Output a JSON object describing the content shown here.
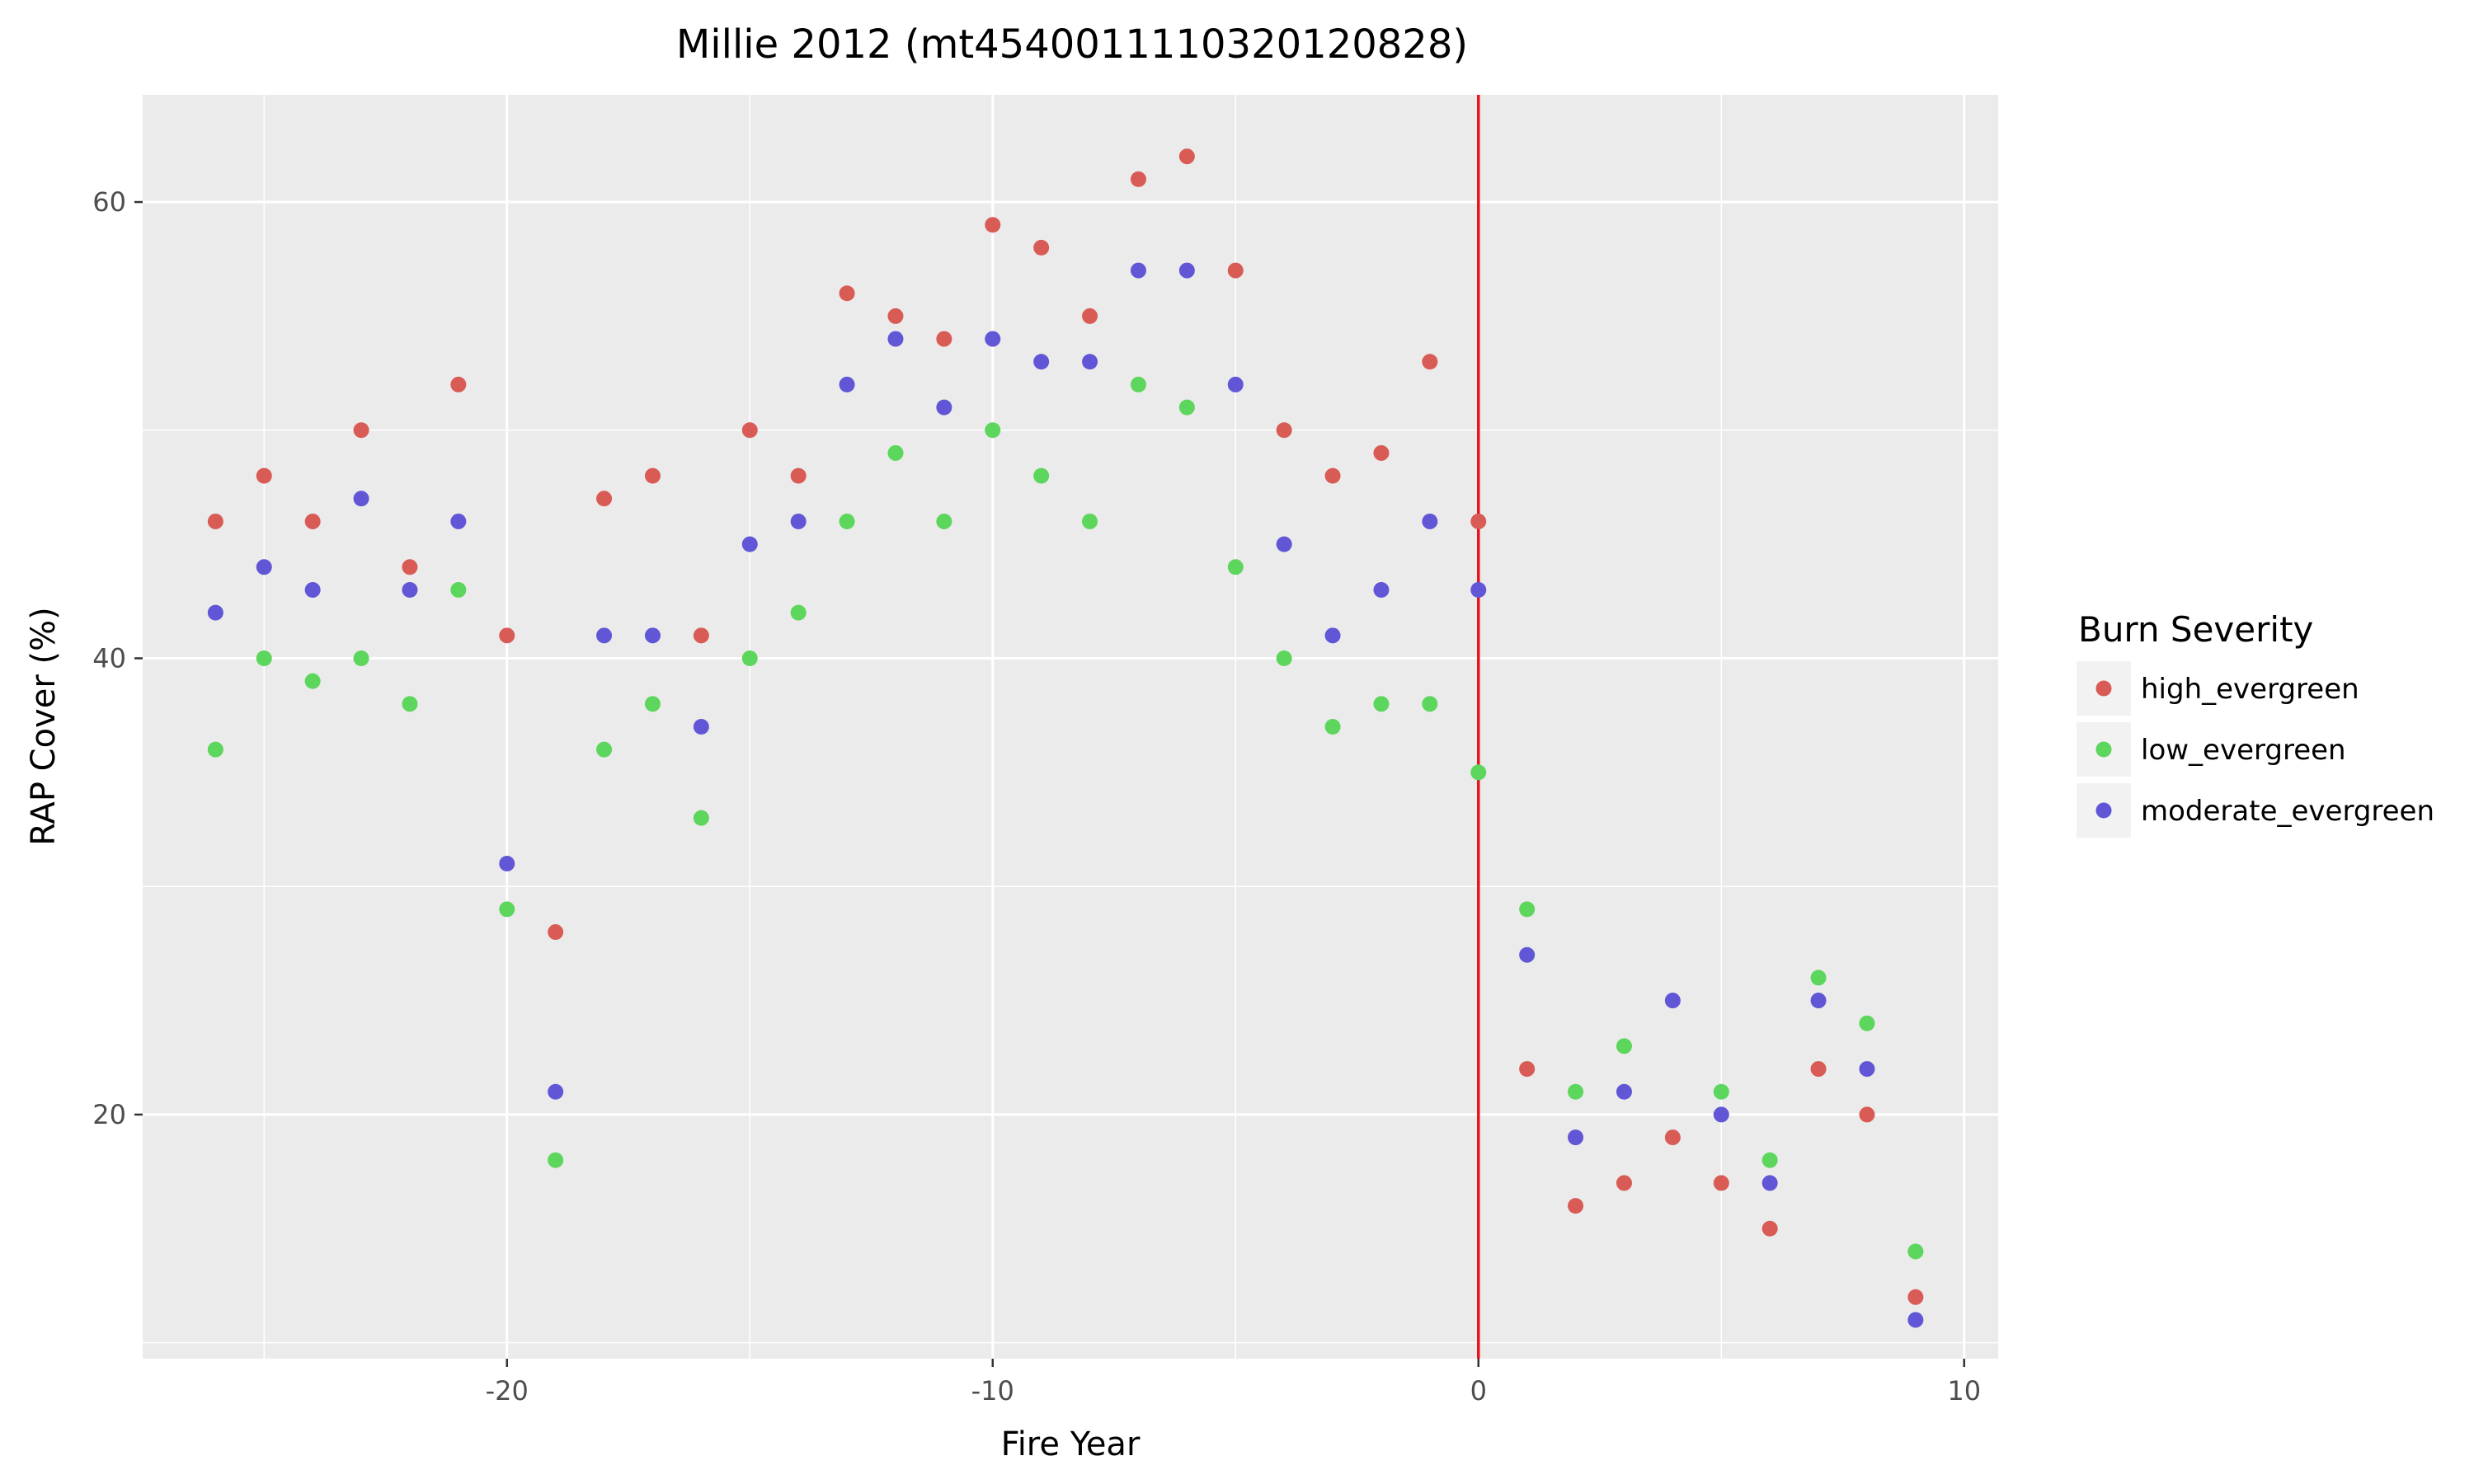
{
  "chart_data": {
    "type": "scatter",
    "title": "Millie 2012 (mt4540011110320120828)",
    "xlabel": "Fire Year",
    "ylabel": "RAP Cover (%)",
    "xlim": [
      -27.5,
      10.7
    ],
    "ylim": [
      9.3,
      64.7
    ],
    "x_ticks": [
      -20,
      -10,
      0,
      10
    ],
    "y_ticks": [
      20,
      40,
      60
    ],
    "grid": true,
    "vline_x": 0,
    "vline_color": "#e8141c",
    "legend": {
      "title": "Burn Severity",
      "position": "right"
    },
    "series": [
      {
        "name": "high_evergreen",
        "color": "#d95b55",
        "points": [
          [
            -26,
            46
          ],
          [
            -25,
            48
          ],
          [
            -24,
            46
          ],
          [
            -23,
            50
          ],
          [
            -22,
            44
          ],
          [
            -21,
            52
          ],
          [
            -20,
            41
          ],
          [
            -19,
            28
          ],
          [
            -18,
            47
          ],
          [
            -17,
            48
          ],
          [
            -16,
            41
          ],
          [
            -15,
            50
          ],
          [
            -14,
            48
          ],
          [
            -13,
            56
          ],
          [
            -12,
            55
          ],
          [
            -11,
            54
          ],
          [
            -10,
            59
          ],
          [
            -9,
            58
          ],
          [
            -8,
            55
          ],
          [
            -7,
            61
          ],
          [
            -6,
            62
          ],
          [
            -5,
            57
          ],
          [
            -4,
            50
          ],
          [
            -3,
            48
          ],
          [
            -2,
            49
          ],
          [
            -1,
            53
          ],
          [
            0,
            46
          ],
          [
            1,
            22
          ],
          [
            2,
            16
          ],
          [
            3,
            17
          ],
          [
            4,
            19
          ],
          [
            5,
            17
          ],
          [
            6,
            15
          ],
          [
            7,
            22
          ],
          [
            8,
            20
          ],
          [
            9,
            12
          ]
        ]
      },
      {
        "name": "low_evergreen",
        "color": "#5cd65c",
        "points": [
          [
            -26,
            36
          ],
          [
            -25,
            40
          ],
          [
            -24,
            39
          ],
          [
            -23,
            40
          ],
          [
            -22,
            38
          ],
          [
            -21,
            43
          ],
          [
            -20,
            29
          ],
          [
            -19,
            18
          ],
          [
            -18,
            36
          ],
          [
            -17,
            38
          ],
          [
            -16,
            33
          ],
          [
            -15,
            40
          ],
          [
            -14,
            42
          ],
          [
            -13,
            46
          ],
          [
            -12,
            49
          ],
          [
            -11,
            46
          ],
          [
            -10,
            50
          ],
          [
            -9,
            48
          ],
          [
            -8,
            46
          ],
          [
            -7,
            52
          ],
          [
            -6,
            51
          ],
          [
            -5,
            44
          ],
          [
            -4,
            40
          ],
          [
            -3,
            37
          ],
          [
            -2,
            38
          ],
          [
            -1,
            38
          ],
          [
            0,
            35
          ],
          [
            1,
            29
          ],
          [
            2,
            21
          ],
          [
            3,
            23
          ],
          [
            5,
            21
          ],
          [
            6,
            18
          ],
          [
            7,
            26
          ],
          [
            8,
            24
          ],
          [
            9,
            14
          ]
        ]
      },
      {
        "name": "moderate_evergreen",
        "color": "#6156d6",
        "points": [
          [
            -26,
            42
          ],
          [
            -25,
            44
          ],
          [
            -24,
            43
          ],
          [
            -23,
            47
          ],
          [
            -22,
            43
          ],
          [
            -21,
            46
          ],
          [
            -20,
            31
          ],
          [
            -19,
            21
          ],
          [
            -18,
            41
          ],
          [
            -17,
            41
          ],
          [
            -16,
            37
          ],
          [
            -15,
            45
          ],
          [
            -14,
            46
          ],
          [
            -13,
            52
          ],
          [
            -12,
            54
          ],
          [
            -11,
            51
          ],
          [
            -10,
            54
          ],
          [
            -9,
            53
          ],
          [
            -8,
            53
          ],
          [
            -7,
            57
          ],
          [
            -6,
            57
          ],
          [
            -5,
            52
          ],
          [
            -4,
            45
          ],
          [
            -3,
            41
          ],
          [
            -2,
            43
          ],
          [
            -1,
            46
          ],
          [
            0,
            43
          ],
          [
            1,
            27
          ],
          [
            2,
            19
          ],
          [
            3,
            21
          ],
          [
            4,
            25
          ],
          [
            5,
            20
          ],
          [
            6,
            17
          ],
          [
            7,
            25
          ],
          [
            8,
            22
          ],
          [
            9,
            11
          ]
        ]
      }
    ]
  }
}
